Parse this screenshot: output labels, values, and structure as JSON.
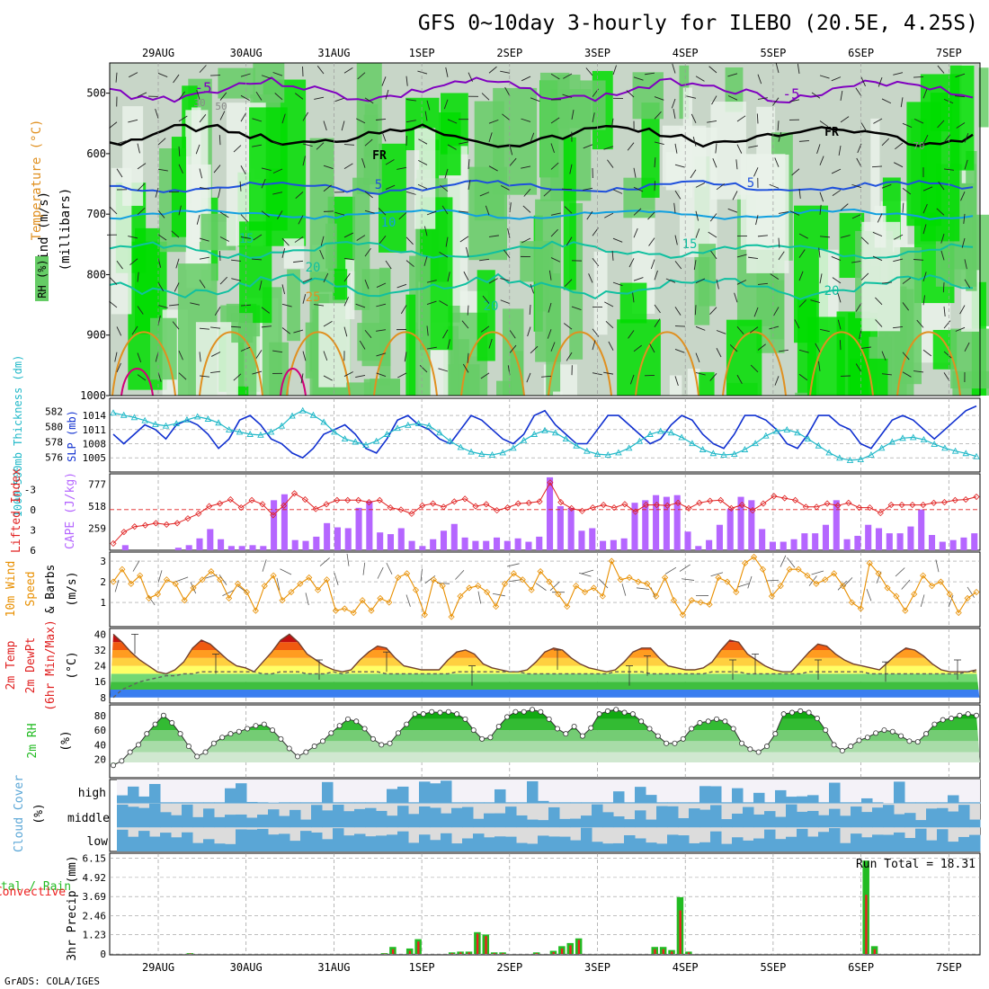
{
  "title": "GFS 0~10day 3-hourly for ILEBO (20.5E, 4.25S)",
  "footer": "GrADS: COLA/IGES",
  "dates": [
    "29AUG",
    "30AUG",
    "31AUG",
    "1SEP",
    "2SEP",
    "3SEP",
    "4SEP",
    "5SEP",
    "6SEP",
    "7SEP"
  ],
  "colors": {
    "rh_green_dark": "#00dd00",
    "rh_green": "#66cc66",
    "rh_grey": "#c8d6c8",
    "purple": "#8000c0",
    "blue": "#1e50dc",
    "cyan": "#10a0e0",
    "teal": "#10c0a0",
    "orange": "#e09020",
    "magenta": "#d0007a",
    "slp": "#1030d0",
    "thick": "#20b8c8",
    "lifted": "#e02020",
    "cape": "#b566ff",
    "wind": "#e88f00",
    "cloud": "#5aa6d6",
    "precip": "#22bb22",
    "conv": "#ee2020"
  },
  "labels": {
    "upper_wind": "Wind (m/s)",
    "upper_temp": "Temperature (°C)",
    "upper_rh": "RH (%)",
    "upper_unit": "(millibars)",
    "thick": "1000-500mb Thickness (dm)",
    "slp": "SLP (mb)",
    "lifted": "Lifted Index",
    "cape": "CAPE (J/kg)",
    "wind10a": "10m Wind",
    "wind10b": "Speed",
    "wind10c": "& Barbs",
    "wind10unit": "(m/s)",
    "t2a": "2m Temp",
    "t2b": "2m DewPt",
    "t2c": "(6hr Min/Max)",
    "t2unit": "(°C)",
    "rh2": "2m RH",
    "rh2unit": "(%)",
    "cloud": "Cloud Cover",
    "cloudunit": "(%)",
    "cloud_high": "high",
    "cloud_mid": "middle",
    "cloud_low": "low",
    "precip_total": "tal / Rain",
    "precip_conv": "Convective",
    "precip_unit": "3hr Precip (mm)",
    "run_total": "Run Total = 18.31"
  },
  "contour_labels": {
    "purple": [
      "-5",
      "-5"
    ],
    "freezing": [
      "FR",
      "FR"
    ],
    "blue": [
      "5",
      "5"
    ],
    "cyan": [
      "10"
    ],
    "teal15": [
      "15",
      "15"
    ],
    "teal20": [
      "20",
      "20",
      "20"
    ],
    "orange": [
      "25"
    ],
    "rh": [
      "30",
      "50",
      "70"
    ]
  },
  "chart_data": [
    {
      "type": "heatmap",
      "name": "upper",
      "yticks": [
        500,
        600,
        700,
        800,
        900,
        1000
      ],
      "contours": {
        "purple": -5,
        "freezing": 0,
        "blue": 5,
        "cyan": 10,
        "teal15": 15,
        "teal20": 20,
        "orange": 25
      }
    },
    {
      "type": "line",
      "name": "slp_thickness",
      "thick_ticks": [
        582,
        580,
        578,
        576
      ],
      "slp_ticks": [
        1014,
        1011,
        1008,
        1005
      ],
      "slp": [
        1010,
        1008,
        1010,
        1012,
        1011,
        1009,
        1012,
        1013,
        1012,
        1010,
        1007,
        1009,
        1013,
        1014,
        1012,
        1009,
        1008,
        1006,
        1005,
        1007,
        1010,
        1011,
        1012,
        1010,
        1007,
        1006,
        1009,
        1013,
        1014,
        1012,
        1011,
        1009,
        1008,
        1011,
        1014,
        1013,
        1011,
        1009,
        1008,
        1010,
        1014,
        1015,
        1012,
        1010,
        1008,
        1008,
        1011,
        1014,
        1014,
        1012,
        1010,
        1008,
        1009,
        1012,
        1014,
        1013,
        1010,
        1008,
        1007,
        1010,
        1014,
        1014,
        1013,
        1011,
        1008,
        1007,
        1010,
        1014,
        1014,
        1012,
        1011,
        1008,
        1007,
        1010,
        1013,
        1014,
        1013,
        1011,
        1009,
        1011,
        1013,
        1015,
        1016
      ],
      "thickness": [
        581.8,
        581.5,
        581.2,
        580.8,
        580.3,
        580.1,
        580.4,
        580.9,
        581.3,
        581.0,
        580.5,
        579.6,
        579.3,
        579.0,
        578.9,
        579.3,
        580.1,
        581.4,
        582.1,
        581.5,
        580.6,
        579.3,
        578.4,
        578.0,
        577.6,
        578.1,
        579.0,
        579.8,
        580.2,
        580.4,
        580.1,
        579.2,
        578.1,
        577.3,
        576.7,
        576.4,
        576.3,
        576.6,
        577.2,
        578.2,
        579.0,
        579.5,
        579.2,
        578.4,
        577.5,
        576.8,
        576.4,
        576.3,
        576.6,
        577.2,
        578.1,
        579.0,
        579.4,
        579.2,
        578.6,
        577.8,
        577.0,
        576.5,
        576.3,
        576.4,
        577.0,
        577.8,
        578.8,
        579.4,
        579.6,
        579.2,
        578.4,
        577.5,
        576.6,
        575.9,
        575.6,
        575.7,
        576.3,
        577.2,
        578.0,
        578.5,
        578.6,
        578.3,
        577.7,
        577.2,
        576.8,
        576.5,
        576.1
      ]
    },
    {
      "type": "bar",
      "name": "cape_lifted",
      "li_ticks": [
        -3,
        0,
        3,
        6
      ],
      "cape_ticks": [
        777,
        518,
        259
      ],
      "cape": [
        0,
        60,
        0,
        0,
        0,
        0,
        30,
        60,
        140,
        250,
        130,
        50,
        50,
        60,
        50,
        590,
        660,
        120,
        110,
        160,
        320,
        270,
        260,
        500,
        580,
        210,
        190,
        260,
        110,
        50,
        130,
        230,
        310,
        150,
        110,
        110,
        150,
        110,
        140,
        100,
        160,
        860,
        520,
        500,
        230,
        260,
        110,
        120,
        140,
        560,
        590,
        650,
        630,
        650,
        220,
        50,
        120,
        300,
        490,
        630,
        590,
        250,
        100,
        100,
        130,
        200,
        200,
        300,
        590,
        130,
        170,
        300,
        260,
        200,
        200,
        280,
        480,
        180,
        100,
        120,
        150,
        200
      ],
      "lifted": [
        5.0,
        3.3,
        2.5,
        2.3,
        2.0,
        2.2,
        2.0,
        1.3,
        0.6,
        -0.5,
        -0.9,
        -1.5,
        -0.3,
        -1.4,
        -0.8,
        0.8,
        -0.6,
        -2.4,
        -1.5,
        -0.1,
        -0.8,
        -1.4,
        -1.4,
        -1.4,
        -1.1,
        -1.4,
        -0.3,
        0.0,
        0.6,
        -0.6,
        -0.9,
        -0.4,
        -1.2,
        -1.6,
        -0.5,
        -0.8,
        0.1,
        -0.3,
        -0.9,
        -1.0,
        -1.2,
        -4.0,
        -1.1,
        -0.2,
        0.2,
        -0.3,
        -0.7,
        -0.3,
        -0.8,
        0.3,
        -0.7,
        -0.7,
        -0.6,
        -1.0,
        -0.2,
        -1.0,
        -1.3,
        -1.4,
        -0.2,
        -0.7,
        0.1,
        -0.9,
        -2.0,
        -1.7,
        -1.4,
        -0.4,
        -0.4,
        -0.9,
        -0.6,
        -1.0,
        -0.3,
        -0.3,
        0.5,
        -0.7,
        -0.7,
        -0.7,
        -0.7,
        -1.0,
        -1.1,
        -1.4,
        -1.5,
        -1.9
      ]
    },
    {
      "type": "line",
      "name": "wind10m",
      "yticks": [
        1,
        2,
        3
      ],
      "speed": [
        2.0,
        2.6,
        1.9,
        2.3,
        1.2,
        1.4,
        2.1,
        1.9,
        1.1,
        1.7,
        2.1,
        2.5,
        2.1,
        1.2,
        1.9,
        1.5,
        0.6,
        1.8,
        2.3,
        1.1,
        1.5,
        1.9,
        2.2,
        1.6,
        2.1,
        0.6,
        0.7,
        0.5,
        1.1,
        0.6,
        1.2,
        1.0,
        2.2,
        2.4,
        1.6,
        0.4,
        2.1,
        1.8,
        0.3,
        1.3,
        1.7,
        1.8,
        1.5,
        0.8,
        1.9,
        2.4,
        2.1,
        1.6,
        2.5,
        2.0,
        1.4,
        0.8,
        1.8,
        1.5,
        1.7,
        1.3,
        3.0,
        2.1,
        2.2,
        2.0,
        1.9,
        1.3,
        2.2,
        1.1,
        0.4,
        1.1,
        1.0,
        0.9,
        2.2,
        2.0,
        1.5,
        2.9,
        3.2,
        2.6,
        1.3,
        1.8,
        2.6,
        2.6,
        2.3,
        1.9,
        2.1,
        2.4,
        1.8,
        1.0,
        0.7,
        2.9,
        2.4,
        1.7,
        1.3,
        0.6,
        1.4,
        2.3,
        1.8,
        2.0,
        1.4,
        0.5,
        1.2,
        1.5
      ]
    },
    {
      "type": "area",
      "name": "temp2m",
      "yticks": [
        8,
        16,
        24,
        32,
        40
      ],
      "temp": [
        40,
        36,
        31,
        27,
        24,
        21,
        20,
        22,
        26,
        33,
        37,
        35,
        31,
        27,
        24,
        23,
        21,
        26,
        31,
        37,
        40,
        36,
        30,
        27,
        24,
        22,
        21,
        22,
        27,
        31,
        34,
        33,
        28,
        24,
        23,
        22,
        22,
        22,
        27,
        31,
        32,
        30,
        25,
        23,
        22,
        21,
        21,
        22,
        26,
        31,
        33,
        32,
        28,
        25,
        23,
        22,
        21,
        22,
        26,
        31,
        33,
        33,
        28,
        24,
        23,
        22,
        22,
        23,
        26,
        32,
        37,
        36,
        30,
        27,
        24,
        22,
        21,
        21,
        26,
        31,
        35,
        34,
        30,
        27,
        25,
        24,
        23,
        22,
        26,
        30,
        33,
        32,
        29,
        25,
        22,
        21,
        21,
        21,
        22
      ],
      "dew": [
        8,
        12,
        14,
        16,
        17,
        18,
        19,
        19,
        20,
        20,
        21,
        21,
        21,
        21,
        21,
        21,
        21,
        20,
        20,
        21,
        21,
        21,
        20,
        20,
        20,
        21,
        20,
        21,
        21,
        21,
        21,
        20,
        20,
        20,
        20,
        20,
        20,
        20,
        20,
        21,
        21,
        21,
        21,
        21,
        21,
        21,
        21,
        20,
        20,
        20,
        20,
        20,
        20,
        20,
        20,
        20,
        20,
        21,
        21,
        21,
        21,
        20,
        20,
        20,
        20,
        20,
        20,
        20,
        21,
        21,
        21,
        21,
        20,
        20,
        20,
        20,
        20,
        20,
        20,
        21,
        21,
        21,
        21,
        21,
        21,
        21,
        20,
        20,
        20,
        20,
        20,
        20,
        20,
        20,
        20,
        20,
        20,
        21,
        21
      ]
    },
    {
      "type": "area",
      "name": "rh2m",
      "yticks": [
        20,
        40,
        60,
        80
      ],
      "rh": [
        12,
        18,
        30,
        40,
        55,
        68,
        80,
        70,
        55,
        38,
        24,
        30,
        42,
        50,
        55,
        58,
        62,
        66,
        68,
        60,
        48,
        35,
        24,
        30,
        38,
        45,
        56,
        66,
        75,
        72,
        62,
        48,
        40,
        42,
        56,
        68,
        82,
        82,
        85,
        84,
        85,
        82,
        75,
        60,
        48,
        50,
        65,
        78,
        85,
        85,
        88,
        85,
        75,
        62,
        55,
        65,
        52,
        63,
        82,
        86,
        88,
        84,
        82,
        72,
        62,
        52,
        42,
        42,
        48,
        62,
        70,
        72,
        75,
        72,
        62,
        42,
        34,
        30,
        38,
        55,
        82,
        84,
        86,
        84,
        76,
        60,
        40,
        32,
        38,
        46,
        50,
        56,
        60,
        58,
        52,
        45,
        44,
        55,
        68,
        74,
        76,
        80,
        82,
        80
      ]
    },
    {
      "type": "bar",
      "name": "cloud_cover",
      "rows": [
        "high",
        "middle",
        "low"
      ]
    },
    {
      "type": "bar",
      "name": "precip3hr",
      "yticks": [
        0,
        1.23,
        2.46,
        3.69,
        4.92,
        6.15
      ],
      "total": [
        0,
        0,
        0,
        0,
        0,
        0,
        0,
        0,
        0,
        0.05,
        0,
        0,
        0,
        0,
        0,
        0,
        0,
        0,
        0,
        0,
        0,
        0,
        0,
        0,
        0,
        0,
        0,
        0,
        0,
        0,
        0,
        0,
        0.05,
        0.45,
        0,
        0.35,
        0.95,
        0,
        0,
        0,
        0.1,
        0.15,
        0.15,
        1.4,
        1.25,
        0.1,
        0.1,
        0,
        0,
        0,
        0.1,
        0,
        0.2,
        0.5,
        0.7,
        1.0,
        0,
        0,
        0,
        0,
        0,
        0,
        0,
        0,
        0.45,
        0.45,
        0.25,
        3.65,
        0.15,
        0,
        0,
        0,
        0,
        0,
        0,
        0,
        0,
        0,
        0,
        0,
        0,
        0,
        0,
        0,
        0,
        0,
        0,
        0,
        0,
        6.0,
        0.5,
        0,
        0,
        0,
        0,
        0,
        0,
        0,
        0,
        0,
        0,
        0,
        0
      ],
      "convective": [
        0,
        0,
        0,
        0,
        0,
        0,
        0,
        0,
        0,
        0.03,
        0,
        0,
        0,
        0,
        0,
        0,
        0,
        0,
        0,
        0,
        0,
        0,
        0,
        0,
        0,
        0,
        0,
        0,
        0,
        0,
        0,
        0,
        0.02,
        0.3,
        0,
        0.2,
        0.8,
        0,
        0,
        0,
        0.05,
        0.1,
        0.1,
        1.3,
        1.15,
        0.05,
        0.05,
        0,
        0,
        0,
        0.05,
        0,
        0.12,
        0.35,
        0.55,
        0.9,
        0,
        0,
        0,
        0,
        0,
        0,
        0,
        0,
        0.3,
        0.3,
        0.15,
        2.8,
        0.1,
        0,
        0,
        0,
        0,
        0,
        0,
        0,
        0,
        0,
        0,
        0,
        0,
        0,
        0,
        0,
        0,
        0,
        0,
        0,
        0,
        3.8,
        0.3,
        0,
        0,
        0,
        0,
        0,
        0,
        0,
        0,
        0,
        0,
        0,
        0
      ]
    }
  ]
}
